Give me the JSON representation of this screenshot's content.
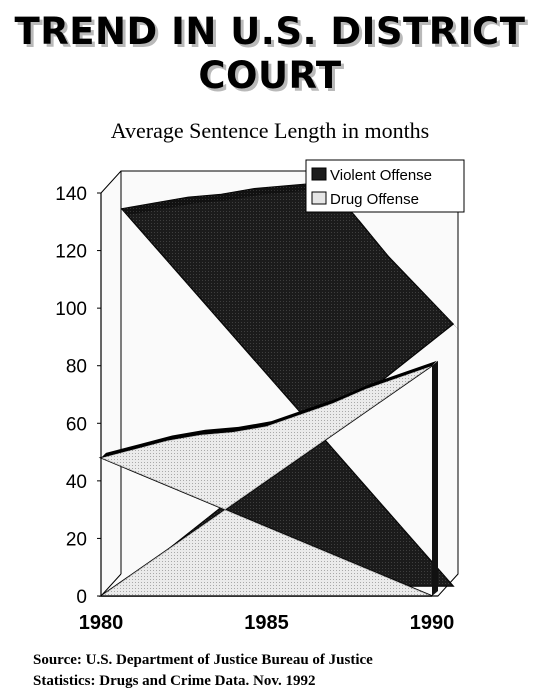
{
  "title_lines": [
    "TREND IN U.S. DISTRICT",
    "COURT"
  ],
  "subtitle": "Average Sentence Length in months",
  "source_lines": [
    "Source: U.S. Department of Justice Bureau of Justice",
    "Statistics: Drugs and Crime Data. Nov. 1992"
  ],
  "chart_data": {
    "type": "area",
    "title": "Average Sentence Length in months",
    "x": [
      1980,
      1981,
      1982,
      1983,
      1984,
      1985,
      1986,
      1987,
      1988,
      1989,
      1990
    ],
    "xtick_labels": [
      "1980",
      "1985",
      "1990"
    ],
    "yticks": [
      "0",
      "20",
      "40",
      "60",
      "80",
      "100",
      "120",
      "140"
    ],
    "ylim": [
      0,
      140
    ],
    "grid": false,
    "legend_position": "top-right",
    "series": [
      {
        "name": "Violent Offense",
        "values": [
          131,
          133,
          135,
          136,
          138,
          139,
          140,
          129,
          115,
          103,
          91
        ]
      },
      {
        "name": "Drug Offense",
        "values": [
          48,
          51,
          54,
          56,
          57,
          59,
          63,
          67,
          72,
          76,
          80
        ]
      }
    ],
    "colors": {
      "violent": "#1c1c1c",
      "drug": "#e6e6e6",
      "outline": "#000000"
    }
  }
}
